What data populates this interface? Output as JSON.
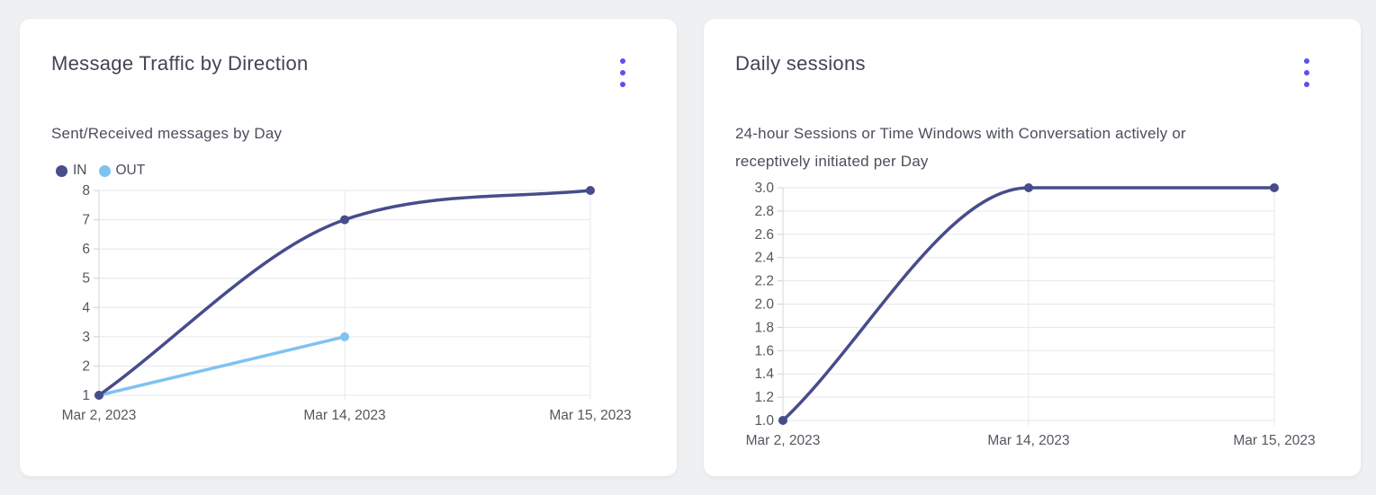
{
  "colors": {
    "accent_menu": "#5a51ee",
    "grid": "#e6e7e9",
    "axis": "#d3d4d8",
    "tick_mark": "#ced0d4",
    "tick_label": "#54575e"
  },
  "cards": [
    {
      "title": "Message Traffic by Direction",
      "subtitle": "Sent/Received messages by Day",
      "chart_data": {
        "type": "line",
        "title": "Message Traffic by Direction",
        "subtitle": "Sent/Received messages by Day",
        "x": [
          "Mar 2, 2023",
          "Mar 14, 2023",
          "Mar 15, 2023"
        ],
        "series": [
          {
            "name": "IN",
            "color": "#474c8b",
            "values": [
              1,
              7,
              8
            ]
          },
          {
            "name": "OUT",
            "color": "#7fc2f0",
            "values": [
              1,
              3,
              null
            ]
          }
        ],
        "ylim": [
          1,
          8
        ],
        "ytick_step": 1,
        "y_decimals": 0,
        "grid": true,
        "smooth": true,
        "legend_position": "top-left"
      }
    },
    {
      "title": "Daily sessions",
      "subtitle": "24-hour Sessions or Time Windows with Conversation actively or receptively initiated per Day",
      "chart_data": {
        "type": "line",
        "title": "Daily sessions",
        "subtitle": "24-hour Sessions or Time Windows with Conversation actively or receptively initiated per Day",
        "x": [
          "Mar 2, 2023",
          "Mar 14, 2023",
          "Mar 15, 2023"
        ],
        "series": [
          {
            "name": "Daily sessions",
            "color": "#474c8b",
            "values": [
              1,
              3,
              3
            ]
          }
        ],
        "ylim": [
          1,
          3
        ],
        "ytick_step": 0.2,
        "y_decimals": 1,
        "grid": true,
        "smooth": true,
        "legend_position": "none"
      }
    }
  ]
}
